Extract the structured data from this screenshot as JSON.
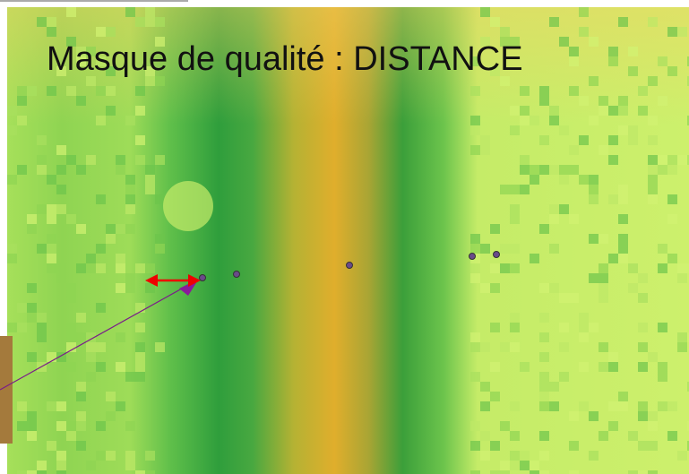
{
  "title": "Masque de qualité : DISTANCE"
}
